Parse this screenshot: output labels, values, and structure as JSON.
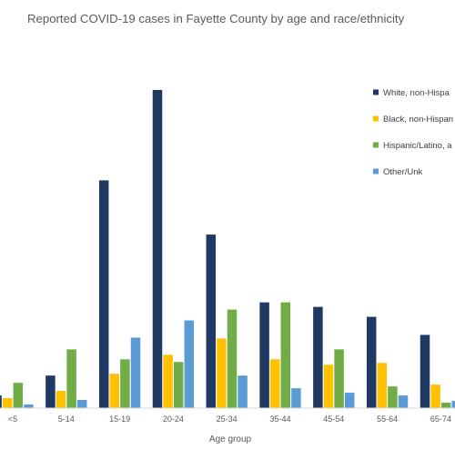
{
  "chart_data": {
    "type": "bar",
    "title": "Reported COVID-19 cases in Fayette County by age and race/ethnicity",
    "xlabel": "Age group",
    "ylabel": "",
    "categories": [
      "<5",
      "5-14",
      "15-19",
      "20-24",
      "25-34",
      "35-44",
      "45-54",
      "55-64",
      "65-74"
    ],
    "series": [
      {
        "name": "White, non-Hispa",
        "color": "#1f3864",
        "values": [
          14,
          36,
          252,
          352,
          192,
          117,
          112,
          101,
          81
        ]
      },
      {
        "name": "Black, non-Hispan",
        "color": "#ffc000",
        "values": [
          11,
          19,
          38,
          59,
          77,
          54,
          48,
          50,
          26
        ]
      },
      {
        "name": "Hispanic/Latino, a",
        "color": "#70ad47",
        "values": [
          28,
          65,
          54,
          51,
          109,
          117,
          65,
          24,
          6
        ]
      },
      {
        "name": "Other/Unk",
        "color": "#5b9bd5",
        "values": [
          4,
          9,
          78,
          97,
          36,
          22,
          17,
          14,
          8
        ]
      }
    ],
    "ylim": [
      0,
      352
    ],
    "grid": false,
    "legend_position": "right"
  }
}
